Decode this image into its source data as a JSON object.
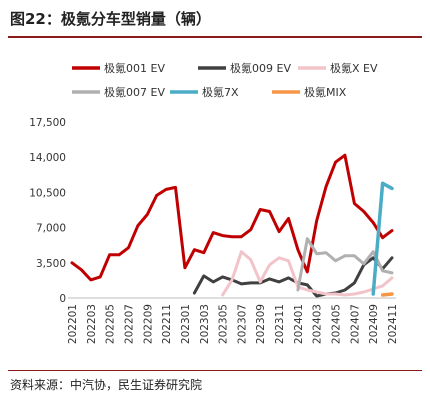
{
  "title": "图22：极氪分车型销量（辆）",
  "source": "资料来源：中汽协，民生证券研究院",
  "chart_data": {
    "type": "line",
    "title": "",
    "xlabel": "",
    "ylabel": "",
    "ylim": [
      0,
      17500
    ],
    "yticks": [
      0,
      3500,
      7000,
      10500,
      14000,
      17500
    ],
    "ytick_labels": [
      "0",
      "3,500",
      "7,000",
      "10,500",
      "14,000",
      "17,500"
    ],
    "grid": false,
    "legend_position": "top",
    "months": [
      "202201",
      "202202",
      "202203",
      "202204",
      "202205",
      "202206",
      "202207",
      "202208",
      "202209",
      "202210",
      "202211",
      "202212",
      "202301",
      "202302",
      "202303",
      "202304",
      "202305",
      "202306",
      "202307",
      "202308",
      "202309",
      "202310",
      "202311",
      "202312",
      "202401",
      "202402",
      "202403",
      "202404",
      "202405",
      "202406",
      "202407",
      "202408",
      "202409",
      "202410",
      "202411"
    ],
    "xtick_labels": [
      "202201",
      "202203",
      "202205",
      "202207",
      "202209",
      "202211",
      "202301",
      "202303",
      "202305",
      "202307",
      "202309",
      "202311",
      "202401",
      "202403",
      "202405",
      "202407",
      "202409",
      "202411"
    ],
    "series": [
      {
        "name": "极氪001 EV",
        "color": "#c00000",
        "width": 3,
        "values": [
          3500,
          2800,
          1800,
          2100,
          4300,
          4300,
          5000,
          7200,
          8300,
          10200,
          10800,
          11000,
          3000,
          4800,
          4500,
          6500,
          6200,
          6100,
          6100,
          6800,
          8800,
          8600,
          6600,
          7900,
          4800,
          2600,
          7700,
          11100,
          13500,
          14200,
          9400,
          8600,
          7500,
          6000,
          6700
        ]
      },
      {
        "name": "极氪009 EV",
        "color": "#404040",
        "width": 3,
        "values": [
          null,
          null,
          null,
          null,
          null,
          null,
          null,
          null,
          null,
          null,
          null,
          null,
          null,
          500,
          2200,
          1600,
          2100,
          1800,
          1400,
          1500,
          1500,
          1900,
          1600,
          2000,
          1500,
          1300,
          200,
          400,
          500,
          800,
          1500,
          3300,
          4000,
          2900,
          4000
        ]
      },
      {
        "name": "极氪X EV",
        "color": "#f2c3c8",
        "width": 3,
        "values": [
          null,
          null,
          null,
          null,
          null,
          null,
          null,
          null,
          null,
          null,
          null,
          null,
          null,
          null,
          null,
          null,
          300,
          1800,
          4600,
          3800,
          1600,
          3300,
          4000,
          3700,
          1100,
          800,
          600,
          400,
          400,
          300,
          400,
          600,
          900,
          1200,
          2000
        ]
      },
      {
        "name": "极氪007 EV",
        "color": "#b0b0b0",
        "width": 3,
        "values": [
          null,
          null,
          null,
          null,
          null,
          null,
          null,
          null,
          null,
          null,
          null,
          null,
          null,
          null,
          null,
          null,
          null,
          null,
          null,
          null,
          null,
          null,
          null,
          null,
          800,
          5900,
          4400,
          4500,
          3700,
          4200,
          4200,
          3400,
          4600,
          2700,
          2500
        ]
      },
      {
        "name": "极氪7X",
        "color": "#4bacc6",
        "width": 3.5,
        "values": [
          null,
          null,
          null,
          null,
          null,
          null,
          null,
          null,
          null,
          null,
          null,
          null,
          null,
          null,
          null,
          null,
          null,
          null,
          null,
          null,
          null,
          null,
          null,
          null,
          null,
          null,
          null,
          null,
          null,
          null,
          null,
          null,
          400,
          11400,
          10900
        ]
      },
      {
        "name": "极氪MIX",
        "color": "#f79646",
        "width": 3.5,
        "values": [
          null,
          null,
          null,
          null,
          null,
          null,
          null,
          null,
          null,
          null,
          null,
          null,
          null,
          null,
          null,
          null,
          null,
          null,
          null,
          null,
          null,
          null,
          null,
          null,
          null,
          null,
          null,
          null,
          null,
          null,
          null,
          null,
          null,
          300,
          400
        ]
      }
    ]
  }
}
